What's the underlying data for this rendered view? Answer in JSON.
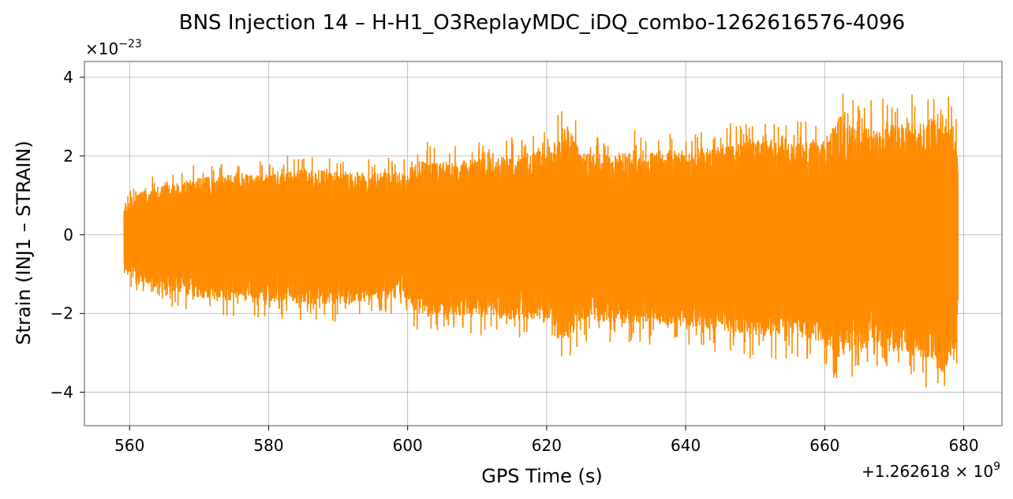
{
  "chart_data": {
    "type": "line",
    "title": "BNS Injection 14 – H-H1_O3ReplayMDC_iDQ_combo-1262616576-4096",
    "xlabel": "GPS Time (s)",
    "ylabel": "Strain (INJ1 – STRAIN)",
    "x_offset_label": "+1.262618 × 10^9",
    "y_scale_label": "×10^−23",
    "xlim": [
      1262618553.5,
      1262618685.5
    ],
    "ylim": [
      -4.85e-23,
      4.4e-23
    ],
    "xticks": [
      1262618560,
      1262618580,
      1262618600,
      1262618620,
      1262618640,
      1262618660,
      1262618680
    ],
    "xtick_labels": [
      "560",
      "580",
      "600",
      "620",
      "640",
      "660",
      "680"
    ],
    "yticks": [
      -4e-23,
      -2e-23,
      0,
      2e-23,
      4e-23
    ],
    "ytick_labels": [
      "−4",
      "−2",
      "0",
      "2",
      "4"
    ],
    "grid": true,
    "series": [
      {
        "color": "#ff8c00",
        "x_start": 1262618559.2,
        "x_end": 1262618679.2,
        "envelope": {
          "x": [
            1262618559.2,
            1262618560,
            1262618562,
            1262618565,
            1262618570,
            1262618575,
            1262618580,
            1262618585,
            1262618590,
            1262618595,
            1262618600,
            1262618601,
            1262618603,
            1262618605,
            1262618610,
            1262618615,
            1262618620,
            1262618623,
            1262618625,
            1262618630,
            1262618635,
            1262618640,
            1262618645,
            1262618650,
            1262618655,
            1262618660,
            1262618662,
            1262618665,
            1262618670,
            1262618674,
            1262618677,
            1262618679.2
          ],
          "upper": [
            8e-24,
            1.1e-23,
            1.4e-23,
            1.6e-23,
            1.8e-23,
            1.9e-23,
            1.9e-23,
            2.1e-23,
            2e-23,
            2e-23,
            1.9e-23,
            2.3e-23,
            2.4e-23,
            2.3e-23,
            2.4e-23,
            2.5e-23,
            2.7e-23,
            3.5e-23,
            2.6e-23,
            2.6e-23,
            2.7e-23,
            2.7e-23,
            2.8e-23,
            3e-23,
            2.9e-23,
            3e-23,
            3.8e-23,
            3.4e-23,
            3.5e-23,
            3.6e-23,
            3.9e-23,
            2.8e-23
          ],
          "lower": [
            -1.1e-23,
            -1.3e-23,
            -1.5e-23,
            -1.8e-23,
            -2e-23,
            -2.1e-23,
            -2.1e-23,
            -2.2e-23,
            -2.2e-23,
            -2.1e-23,
            -2e-23,
            -2.4e-23,
            -2.6e-23,
            -2.5e-23,
            -2.6e-23,
            -2.7e-23,
            -2.7e-23,
            -3.4e-23,
            -2.7e-23,
            -2.8e-23,
            -2.8e-23,
            -2.9e-23,
            -3e-23,
            -3.2e-23,
            -3.2e-23,
            -3.4e-23,
            -3.9e-23,
            -3.6e-23,
            -3.7e-23,
            -3.9e-23,
            -4.4e-23,
            -3.3e-23
          ]
        }
      }
    ]
  }
}
